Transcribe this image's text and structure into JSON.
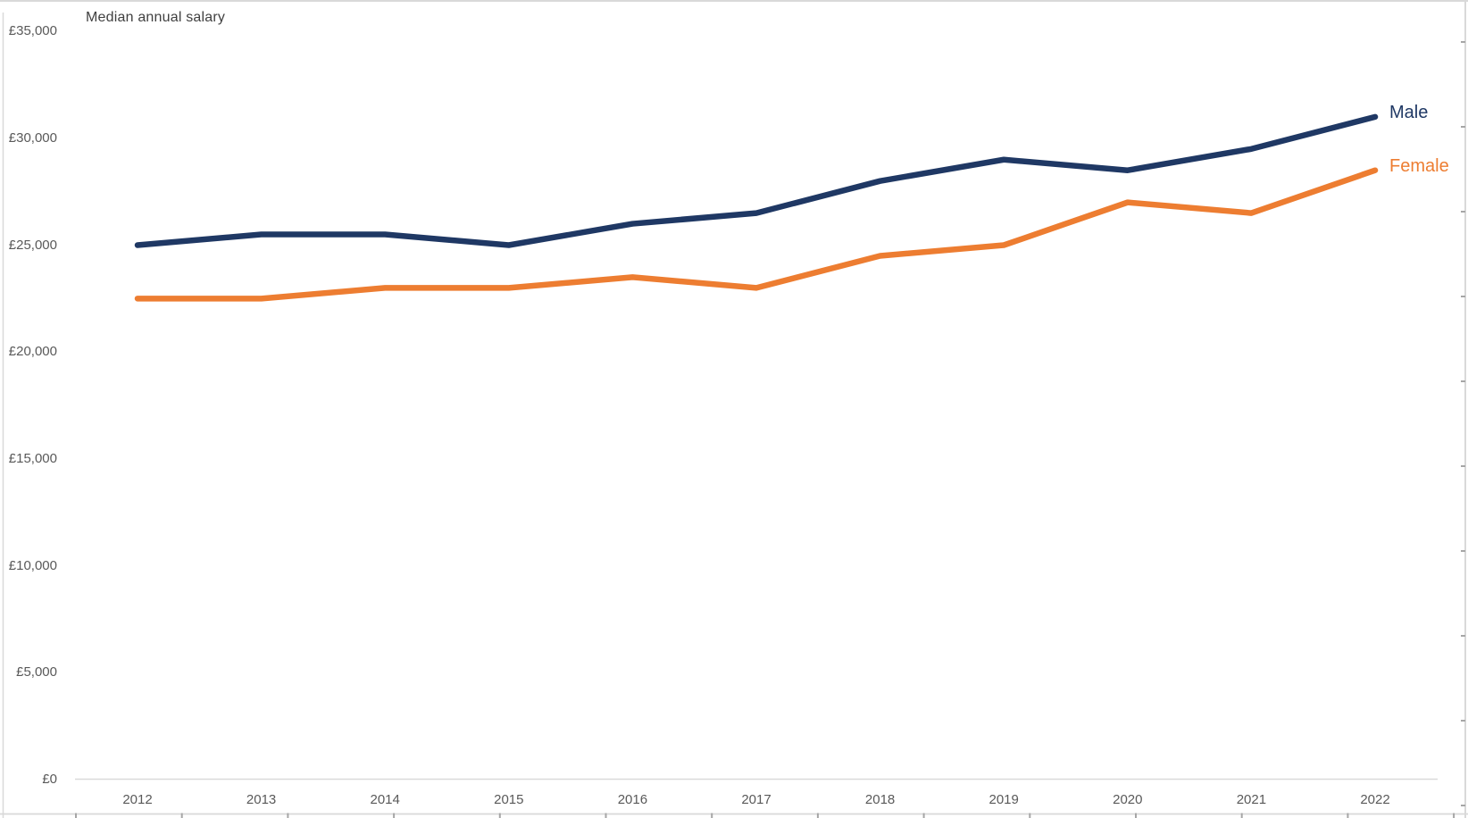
{
  "chart_data": {
    "type": "line",
    "title": "Median annual salary",
    "x": [
      "2012",
      "2013",
      "2014",
      "2015",
      "2016",
      "2017",
      "2018",
      "2019",
      "2020",
      "2021",
      "2022"
    ],
    "series": [
      {
        "name": "Male",
        "color": "#1F3864",
        "values": [
          25000,
          25500,
          25500,
          25000,
          26000,
          26500,
          28000,
          29000,
          28500,
          29500,
          31000
        ]
      },
      {
        "name": "Female",
        "color": "#ED7D31",
        "values": [
          22500,
          22500,
          23000,
          23000,
          23500,
          23000,
          24500,
          25000,
          27000,
          26500,
          28500
        ]
      }
    ],
    "y_axis": {
      "min": 0,
      "max": 35000,
      "step": 5000,
      "tick_labels": [
        "£0",
        "£5,000",
        "£10,000",
        "£15,000",
        "£20,000",
        "£25,000",
        "£30,000",
        "£35,000"
      ]
    },
    "grid": false,
    "legend_position": "labels at end of lines",
    "currency": "£"
  },
  "colors": {
    "male_line": "#1F3864",
    "female_line": "#ED7D31",
    "title_text": "#404040",
    "axis_text": "#595959",
    "axis_line": "#D9D9D9",
    "tick_mark": "#A6A6A6",
    "background": "#FFFFFF"
  }
}
